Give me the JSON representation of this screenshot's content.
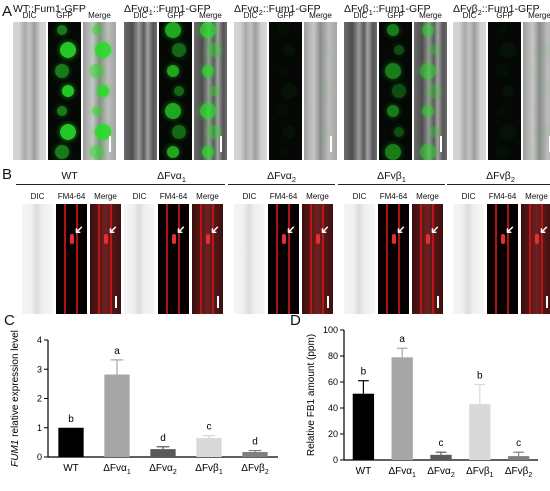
{
  "panelA": {
    "letter": "A",
    "groups": [
      {
        "title": "WT::Fum1-GFP",
        "cols": [
          "DIC",
          "GFP",
          "Merge"
        ],
        "gfp_level": 0.9
      },
      {
        "title": "ΔFvα1::Fum1-GFP",
        "cols": [
          "DIC",
          "GFP",
          "Merge"
        ],
        "gfp_level": 0.75
      },
      {
        "title": "ΔFvα2::Fum1-GFP",
        "cols": [
          "DIC",
          "GFP",
          "Merge"
        ],
        "gfp_level": 0.05
      },
      {
        "title": "ΔFvβ1::Fum1-GFP",
        "cols": [
          "DIC",
          "GFP",
          "Merge"
        ],
        "gfp_level": 0.55
      },
      {
        "title": "ΔFvβ2::Fum1-GFP",
        "cols": [
          "DIC",
          "GFP",
          "Merge"
        ],
        "gfp_level": 0.05
      }
    ]
  },
  "panelB": {
    "letter": "B",
    "groups": [
      {
        "title": "WT",
        "cols": [
          "DIC",
          "FM4-64",
          "Merge"
        ]
      },
      {
        "title": "ΔFvα1",
        "cols": [
          "DIC",
          "FM4-64",
          "Merge"
        ]
      },
      {
        "title": "ΔFvα2",
        "cols": [
          "DIC",
          "FM4-64",
          "Merge"
        ]
      },
      {
        "title": "ΔFvβ1",
        "cols": [
          "DIC",
          "FM4-64",
          "Merge"
        ]
      },
      {
        "title": "ΔFvβ2",
        "cols": [
          "DIC",
          "FM4-64",
          "Merge"
        ]
      }
    ]
  },
  "panelC": {
    "letter": "C",
    "ylabel_gene": "FUM1",
    "ylabel_rest": " relative expression level",
    "chart_data": {
      "type": "bar",
      "categories": [
        "WT",
        "ΔFvα1",
        "ΔFvα2",
        "ΔFvβ1",
        "ΔFvβ2"
      ],
      "values": [
        1.0,
        2.82,
        0.27,
        0.65,
        0.17
      ],
      "errors": [
        0.0,
        0.5,
        0.08,
        0.08,
        0.05
      ],
      "letters": [
        "b",
        "a",
        "d",
        "c",
        "d"
      ],
      "colors": [
        "#000000",
        "#a6a6a6",
        "#595959",
        "#d9d9d9",
        "#7f7f7f"
      ],
      "ylim": [
        0,
        4
      ],
      "yticks": [
        "0",
        "1",
        "2",
        "3",
        "4"
      ],
      "xlabel": ""
    }
  },
  "panelD": {
    "letter": "D",
    "chart_data": {
      "type": "bar",
      "categories": [
        "WT",
        "ΔFvα1",
        "ΔFvα2",
        "ΔFvβ1",
        "ΔFvβ2"
      ],
      "values": [
        51,
        79,
        4,
        43,
        3
      ],
      "errors": [
        10,
        7,
        2,
        15,
        3
      ],
      "letters": [
        "b",
        "a",
        "c",
        "b",
        "c"
      ],
      "colors": [
        "#000000",
        "#a6a6a6",
        "#595959",
        "#d9d9d9",
        "#7f7f7f"
      ],
      "ylim": [
        0,
        100
      ],
      "yticks": [
        "0",
        "20",
        "40",
        "60",
        "80",
        "100"
      ],
      "ylabel": "Relative FB1 amount (ppm)",
      "xlabel": ""
    }
  }
}
